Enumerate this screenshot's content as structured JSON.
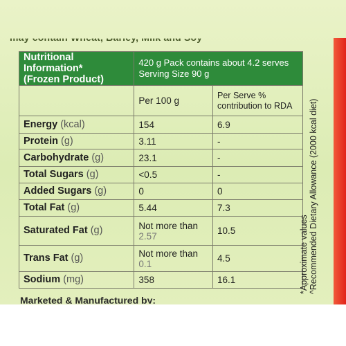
{
  "top_line": "may contain Wheat, Barley, Milk and Soy",
  "header": {
    "left_line1": "Nutritional Information*",
    "left_line2": "(Frozen Product)",
    "right_line1": "420 g Pack contains about 4.2 serves",
    "right_line2": "Serving Size 90 g"
  },
  "columns": {
    "per100": "Per 100 g",
    "perserve_line1": "Per Serve %",
    "perserve_line2": "contribution to RDA"
  },
  "rows": [
    {
      "name": "Energy",
      "unit": "(kcal)",
      "per100": "154",
      "per100_2": "",
      "rda": "6.9"
    },
    {
      "name": "Protein",
      "unit": "(g)",
      "per100": "3.11",
      "per100_2": "",
      "rda": "-"
    },
    {
      "name": "Carbohydrate",
      "unit": "(g)",
      "per100": "23.1",
      "per100_2": "",
      "rda": "-"
    },
    {
      "name": "Total Sugars",
      "unit": "(g)",
      "per100": "<0.5",
      "per100_2": "",
      "rda": "-"
    },
    {
      "name": "Added Sugars",
      "unit": "(g)",
      "per100": "0",
      "per100_2": "",
      "rda": "0"
    },
    {
      "name": "Total Fat",
      "unit": "(g)",
      "per100": "5.44",
      "per100_2": "",
      "rda": "7.3"
    },
    {
      "name": "Saturated Fat",
      "unit": "(g)",
      "per100": "Not more than",
      "per100_2": "2.57",
      "rda": "10.5"
    },
    {
      "name": "Trans Fat",
      "unit": "(g)",
      "per100": "Not more than",
      "per100_2": "0.1",
      "rda": "4.5"
    },
    {
      "name": "Sodium",
      "unit": "(mg)",
      "per100": "358",
      "per100_2": "",
      "rda": "16.1"
    }
  ],
  "side_note": {
    "line1": "*Approximate values",
    "line2": "^Recommended Dietary Allowance (2000 kcal diet)"
  },
  "footer": "Marketed & Manufactured by:",
  "colors": {
    "header_green": "#2e8b3a",
    "pack_background": "#dcecb4",
    "edge_red": "#e2231a"
  }
}
